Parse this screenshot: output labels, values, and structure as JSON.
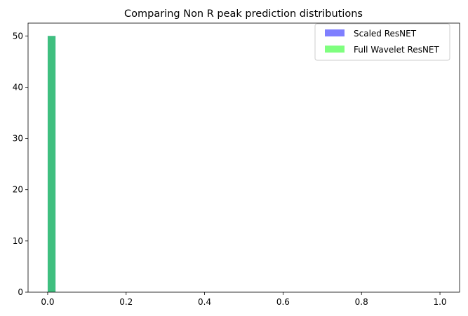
{
  "chart_data": {
    "type": "bar",
    "title": "Comparing Non R peak prediction distributions",
    "xlabel": "",
    "ylabel": "",
    "xlim": [
      -0.05,
      1.05
    ],
    "ylim": [
      0,
      52.5
    ],
    "x_ticks": [
      "0.0",
      "0.2",
      "0.4",
      "0.6",
      "0.8",
      "1.0"
    ],
    "y_ticks": [
      "0",
      "10",
      "20",
      "30",
      "40",
      "50"
    ],
    "bins": {
      "start": 0.0,
      "end": 1.0,
      "count": 50
    },
    "series": [
      {
        "name": "Scaled ResNET",
        "color": "#0000ff",
        "alpha": 0.5,
        "bin_counts": {
          "0": 50
        }
      },
      {
        "name": "Full Wavelet ResNET",
        "color": "#00ff00",
        "alpha": 0.5,
        "bin_counts": {
          "0": 50
        }
      }
    ],
    "legend_position": "top-right",
    "grid": false
  }
}
